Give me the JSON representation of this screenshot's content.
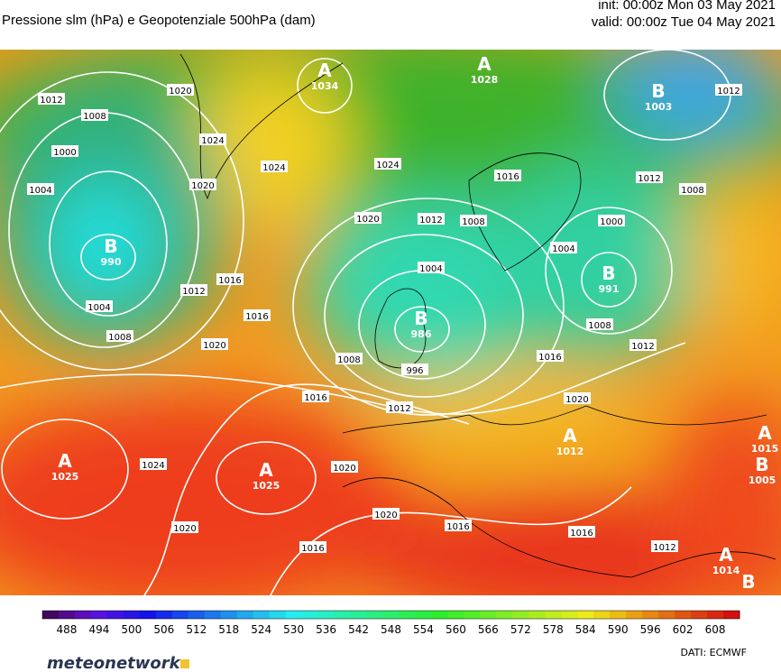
{
  "header": {
    "title": "Pressione slm (hPa) e Geopotenziale 500hPa (dam)",
    "init": "init: 00:00z Mon 03 May 2021",
    "valid": "valid: 00:00z Tue 04 May 2021"
  },
  "centers": [
    {
      "letter": "A",
      "value": 1034
    },
    {
      "letter": "A",
      "value": 1028
    },
    {
      "letter": "B",
      "value": 1003
    },
    {
      "letter": "B",
      "value": 990
    },
    {
      "letter": "B",
      "value": 986
    },
    {
      "letter": "B",
      "value": 991
    },
    {
      "letter": "A",
      "value": 1025
    },
    {
      "letter": "A",
      "value": 1025
    },
    {
      "letter": "A",
      "value": 1012
    },
    {
      "letter": "A",
      "value": 1015
    },
    {
      "letter": "B",
      "value": 1005
    },
    {
      "letter": "A",
      "value": 1014
    },
    {
      "letter": "B"
    }
  ],
  "isobar_labels": [
    1012,
    1008,
    1000,
    1004,
    1020,
    1024,
    1020,
    1024,
    1024,
    1020,
    1012,
    1008,
    1016,
    1004,
    1012,
    1008,
    1000,
    1004,
    1008,
    1012,
    1016,
    1020,
    1016,
    1012,
    1004,
    1008,
    1016,
    1020,
    1016,
    1012,
    996,
    1008,
    1024,
    1020,
    1020,
    1016,
    1016,
    1012,
    1020,
    1016,
    1012
  ],
  "colorbar": {
    "ticks": [
      488,
      494,
      500,
      506,
      512,
      518,
      524,
      530,
      536,
      542,
      548,
      554,
      560,
      566,
      572,
      578,
      584,
      590,
      596,
      602,
      608
    ]
  },
  "footer": {
    "brand": "meteonetwork",
    "source": "DATI:  ECMWF"
  }
}
